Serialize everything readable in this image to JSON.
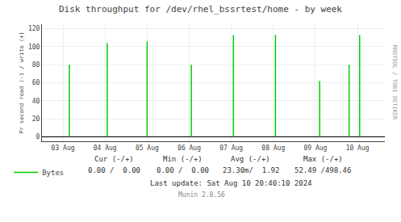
{
  "chart_data": {
    "type": "stem",
    "title": "Disk throughput for /dev/rhel_bssrtest/home - by week",
    "ylabel": "Pr second read (-) / write (+)",
    "x": [
      1.15,
      2.05,
      3.0,
      4.05,
      5.05,
      6.05,
      7.1,
      7.8,
      8.05
    ],
    "series": [
      {
        "name": "Bytes",
        "color": "#00cc00",
        "values": [
          80,
          104,
          106,
          80,
          113,
          113,
          62,
          80,
          113
        ]
      }
    ],
    "xlim": [
      0.5,
      8.65
    ],
    "xticks": [
      {
        "value": 1,
        "label": "03 Aug"
      },
      {
        "value": 2,
        "label": "04 Aug"
      },
      {
        "value": 3,
        "label": "05 Aug"
      },
      {
        "value": 4,
        "label": "06 Aug"
      },
      {
        "value": 5,
        "label": "07 Aug"
      },
      {
        "value": 6,
        "label": "08 Aug"
      },
      {
        "value": 7,
        "label": "09 Aug"
      },
      {
        "value": 8,
        "label": "10 Aug"
      }
    ],
    "ylim": [
      -5,
      125
    ],
    "yticks": [
      0,
      20,
      40,
      60,
      80,
      100,
      120
    ],
    "grid": true,
    "legend": "lower left",
    "annotations": [
      "Cur (-/+)",
      "Min (-/+)",
      "Avg (-/+)",
      "Max (-/+)",
      "0.00 /  0.00",
      "0.00 /  0.00",
      "23.30m/  1.92",
      "52.49 /498.46",
      "Last update: Sat Aug 10 20:40:10 2024",
      "Munin 2.0.56",
      "RRDTOOL / TOBI OETIKER"
    ]
  }
}
